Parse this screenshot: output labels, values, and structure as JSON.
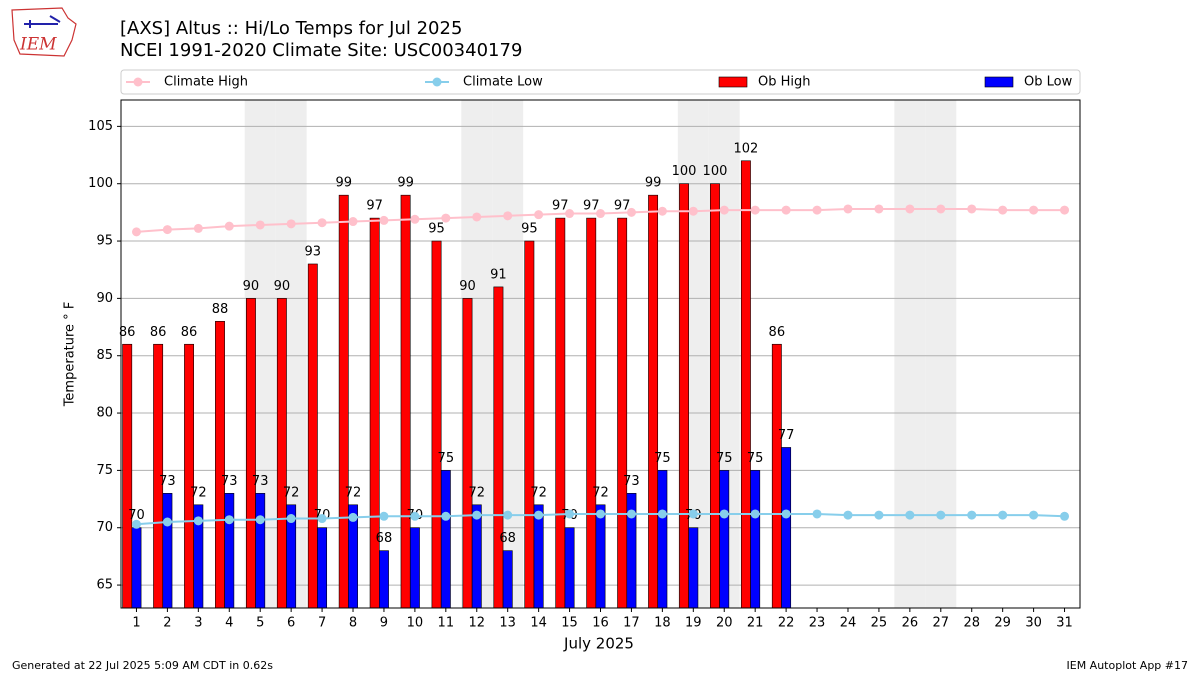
{
  "chart_data": {
    "type": "bar",
    "logo_text": "IEM",
    "title": "[AXS] Altus :: Hi/Lo Temps for Jul 2025",
    "subtitle": "NCEI 1991-2020 Climate Site: USC00340179",
    "x_label": "July 2025",
    "y_label": "Temperature ° F",
    "footer_left": "Generated at 22 Jul 2025 5:09 AM CDT in 0.62s",
    "footer_right": "IEM Autoplot App #17",
    "x": [
      1,
      2,
      3,
      4,
      5,
      6,
      7,
      8,
      9,
      10,
      11,
      12,
      13,
      14,
      15,
      16,
      17,
      18,
      19,
      20,
      21,
      22,
      23,
      24,
      25,
      26,
      27,
      28,
      29,
      30,
      31
    ],
    "xlim": [
      0.5,
      31.5
    ],
    "xticks": [
      1,
      2,
      3,
      4,
      5,
      6,
      7,
      8,
      9,
      10,
      11,
      12,
      13,
      14,
      15,
      16,
      17,
      18,
      19,
      20,
      21,
      22,
      23,
      24,
      25,
      26,
      27,
      28,
      29,
      30,
      31
    ],
    "ylim": [
      63,
      107.3
    ],
    "yticks": [
      65,
      70,
      75,
      80,
      85,
      90,
      95,
      100,
      105
    ],
    "grid": true,
    "highlight_days": [
      5,
      6,
      12,
      13,
      19,
      20,
      26,
      27
    ],
    "series": [
      {
        "name": "Climate High",
        "type": "line",
        "color": "#ffc0cb",
        "values": [
          95.8,
          96.0,
          96.1,
          96.3,
          96.4,
          96.5,
          96.6,
          96.7,
          96.8,
          96.9,
          97.0,
          97.1,
          97.2,
          97.3,
          97.4,
          97.4,
          97.5,
          97.6,
          97.6,
          97.7,
          97.7,
          97.7,
          97.7,
          97.8,
          97.8,
          97.8,
          97.8,
          97.8,
          97.7,
          97.7,
          97.7
        ]
      },
      {
        "name": "Climate Low",
        "type": "line",
        "color": "#87ceeb",
        "values": [
          70.3,
          70.5,
          70.6,
          70.7,
          70.7,
          70.8,
          70.8,
          70.9,
          71.0,
          71.0,
          71.0,
          71.1,
          71.1,
          71.1,
          71.2,
          71.2,
          71.2,
          71.2,
          71.2,
          71.2,
          71.2,
          71.2,
          71.2,
          71.1,
          71.1,
          71.1,
          71.1,
          71.1,
          71.1,
          71.1,
          71.0
        ]
      },
      {
        "name": "Ob High",
        "type": "bar",
        "color": "#ff0000",
        "values": [
          86,
          86,
          86,
          88,
          90,
          90,
          93,
          99,
          97,
          99,
          95,
          90,
          91,
          95,
          97,
          97,
          97,
          99,
          100,
          100,
          102,
          86,
          null,
          null,
          null,
          null,
          null,
          null,
          null,
          null,
          null
        ]
      },
      {
        "name": "Ob Low",
        "type": "bar",
        "color": "#0000ff",
        "values": [
          70,
          73,
          72,
          73,
          73,
          72,
          70,
          72,
          68,
          70,
          75,
          72,
          68,
          72,
          70,
          72,
          73,
          75,
          70,
          75,
          75,
          77,
          null,
          null,
          null,
          null,
          null,
          null,
          null,
          null,
          null
        ]
      }
    ]
  }
}
